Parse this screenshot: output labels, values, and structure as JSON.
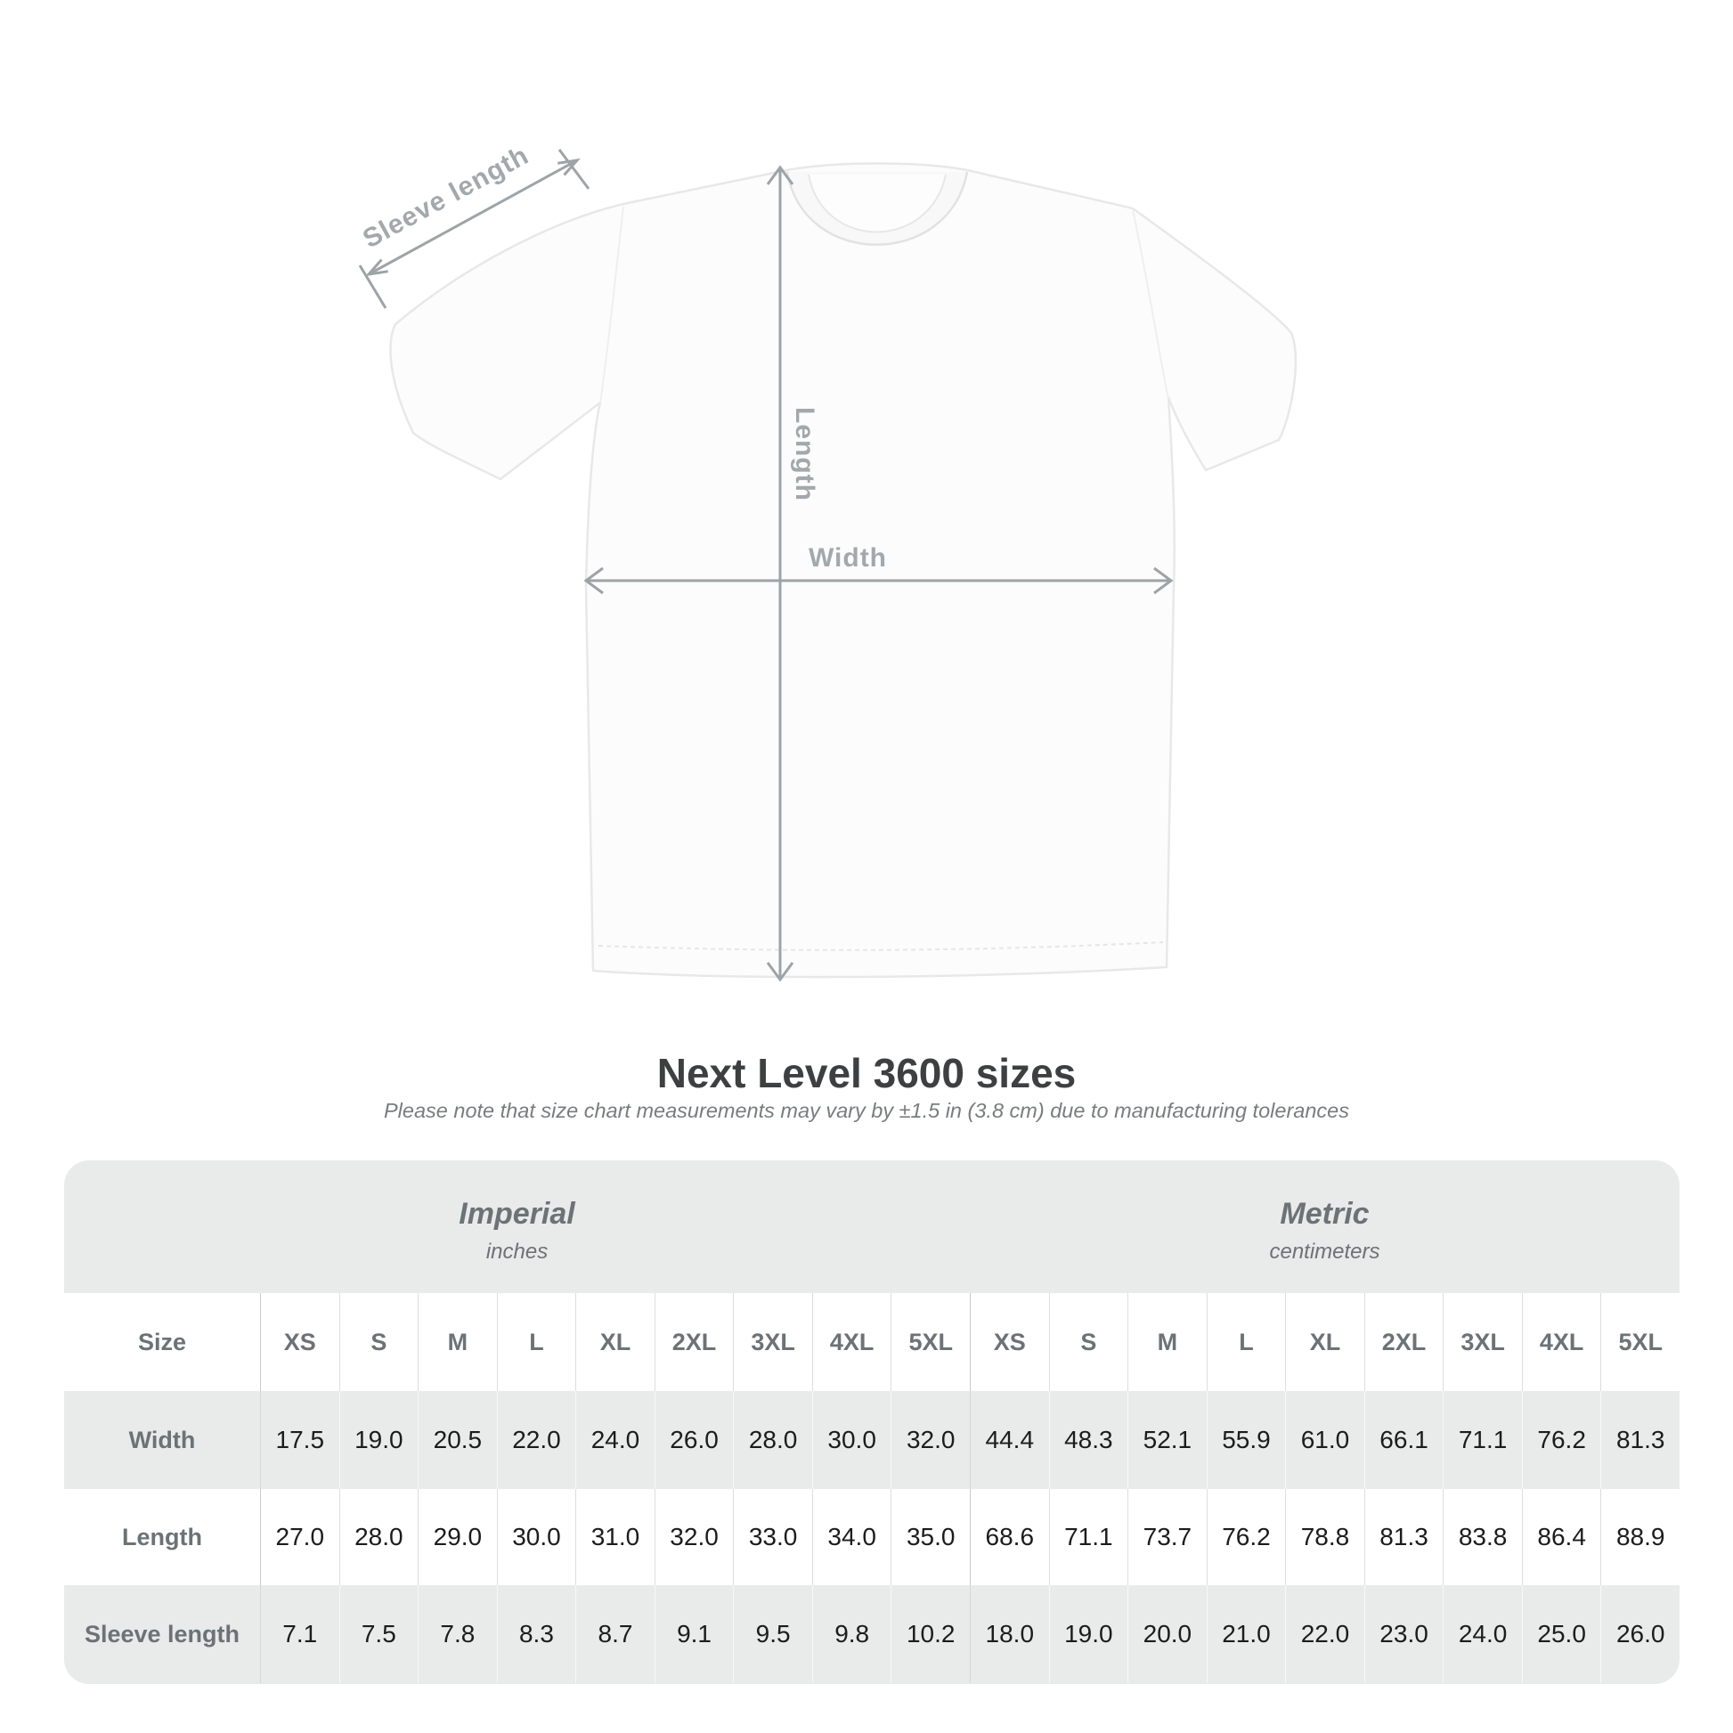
{
  "title": "Next Level 3600 sizes",
  "subtitle": "Please note that size chart measurements may vary by ±1.5 in (3.8 cm) due to manufacturing tolerances",
  "diagram": {
    "sleeve_length_label": "Sleeve length",
    "length_label": "Length",
    "width_label": "Width",
    "arrow_color": "#9da3a7",
    "label_color": "#a2a8ab"
  },
  "size_chart": {
    "panel_color": "#e9eaea",
    "size_col_header": "Size",
    "sizes": [
      "XS",
      "S",
      "M",
      "L",
      "XL",
      "2XL",
      "3XL",
      "4XL",
      "5XL"
    ],
    "groups": [
      {
        "label": "Imperial",
        "unit": "inches"
      },
      {
        "label": "Metric",
        "unit": "centimeters"
      }
    ],
    "rows": [
      {
        "label": "Width",
        "imperial": [
          "17.5",
          "19.0",
          "20.5",
          "22.0",
          "24.0",
          "26.0",
          "28.0",
          "30.0",
          "32.0"
        ],
        "metric": [
          "44.4",
          "48.3",
          "52.1",
          "55.9",
          "61.0",
          "66.1",
          "71.1",
          "76.2",
          "81.3"
        ]
      },
      {
        "label": "Length",
        "imperial": [
          "27.0",
          "28.0",
          "29.0",
          "30.0",
          "31.0",
          "32.0",
          "33.0",
          "34.0",
          "35.0"
        ],
        "metric": [
          "68.6",
          "71.1",
          "73.7",
          "76.2",
          "78.8",
          "81.3",
          "83.8",
          "86.4",
          "88.9"
        ]
      },
      {
        "label": "Sleeve length",
        "imperial": [
          "7.1",
          "7.5",
          "7.8",
          "8.3",
          "8.7",
          "9.1",
          "9.5",
          "9.8",
          "10.2"
        ],
        "metric": [
          "18.0",
          "19.0",
          "20.0",
          "21.0",
          "22.0",
          "23.0",
          "24.0",
          "25.0",
          "26.0"
        ]
      }
    ]
  },
  "chart_data": {
    "type": "table",
    "title": "Next Level 3600 sizes",
    "note": "Please note that size chart measurements may vary by ±1.5 in (3.8 cm) due to manufacturing tolerances",
    "units": {
      "imperial": "inches",
      "metric": "centimeters"
    },
    "sizes": [
      "XS",
      "S",
      "M",
      "L",
      "XL",
      "2XL",
      "3XL",
      "4XL",
      "5XL"
    ],
    "rows": [
      {
        "measurement": "Width",
        "imperial_in": [
          17.5,
          19.0,
          20.5,
          22.0,
          24.0,
          26.0,
          28.0,
          30.0,
          32.0
        ],
        "metric_cm": [
          44.4,
          48.3,
          52.1,
          55.9,
          61.0,
          66.1,
          71.1,
          76.2,
          81.3
        ]
      },
      {
        "measurement": "Length",
        "imperial_in": [
          27.0,
          28.0,
          29.0,
          30.0,
          31.0,
          32.0,
          33.0,
          34.0,
          35.0
        ],
        "metric_cm": [
          68.6,
          71.1,
          73.7,
          76.2,
          78.8,
          81.3,
          83.8,
          86.4,
          88.9
        ]
      },
      {
        "measurement": "Sleeve length",
        "imperial_in": [
          7.1,
          7.5,
          7.8,
          8.3,
          8.7,
          9.1,
          9.5,
          9.8,
          10.2
        ],
        "metric_cm": [
          18.0,
          19.0,
          20.0,
          21.0,
          22.0,
          23.0,
          24.0,
          25.0,
          26.0
        ]
      }
    ]
  }
}
